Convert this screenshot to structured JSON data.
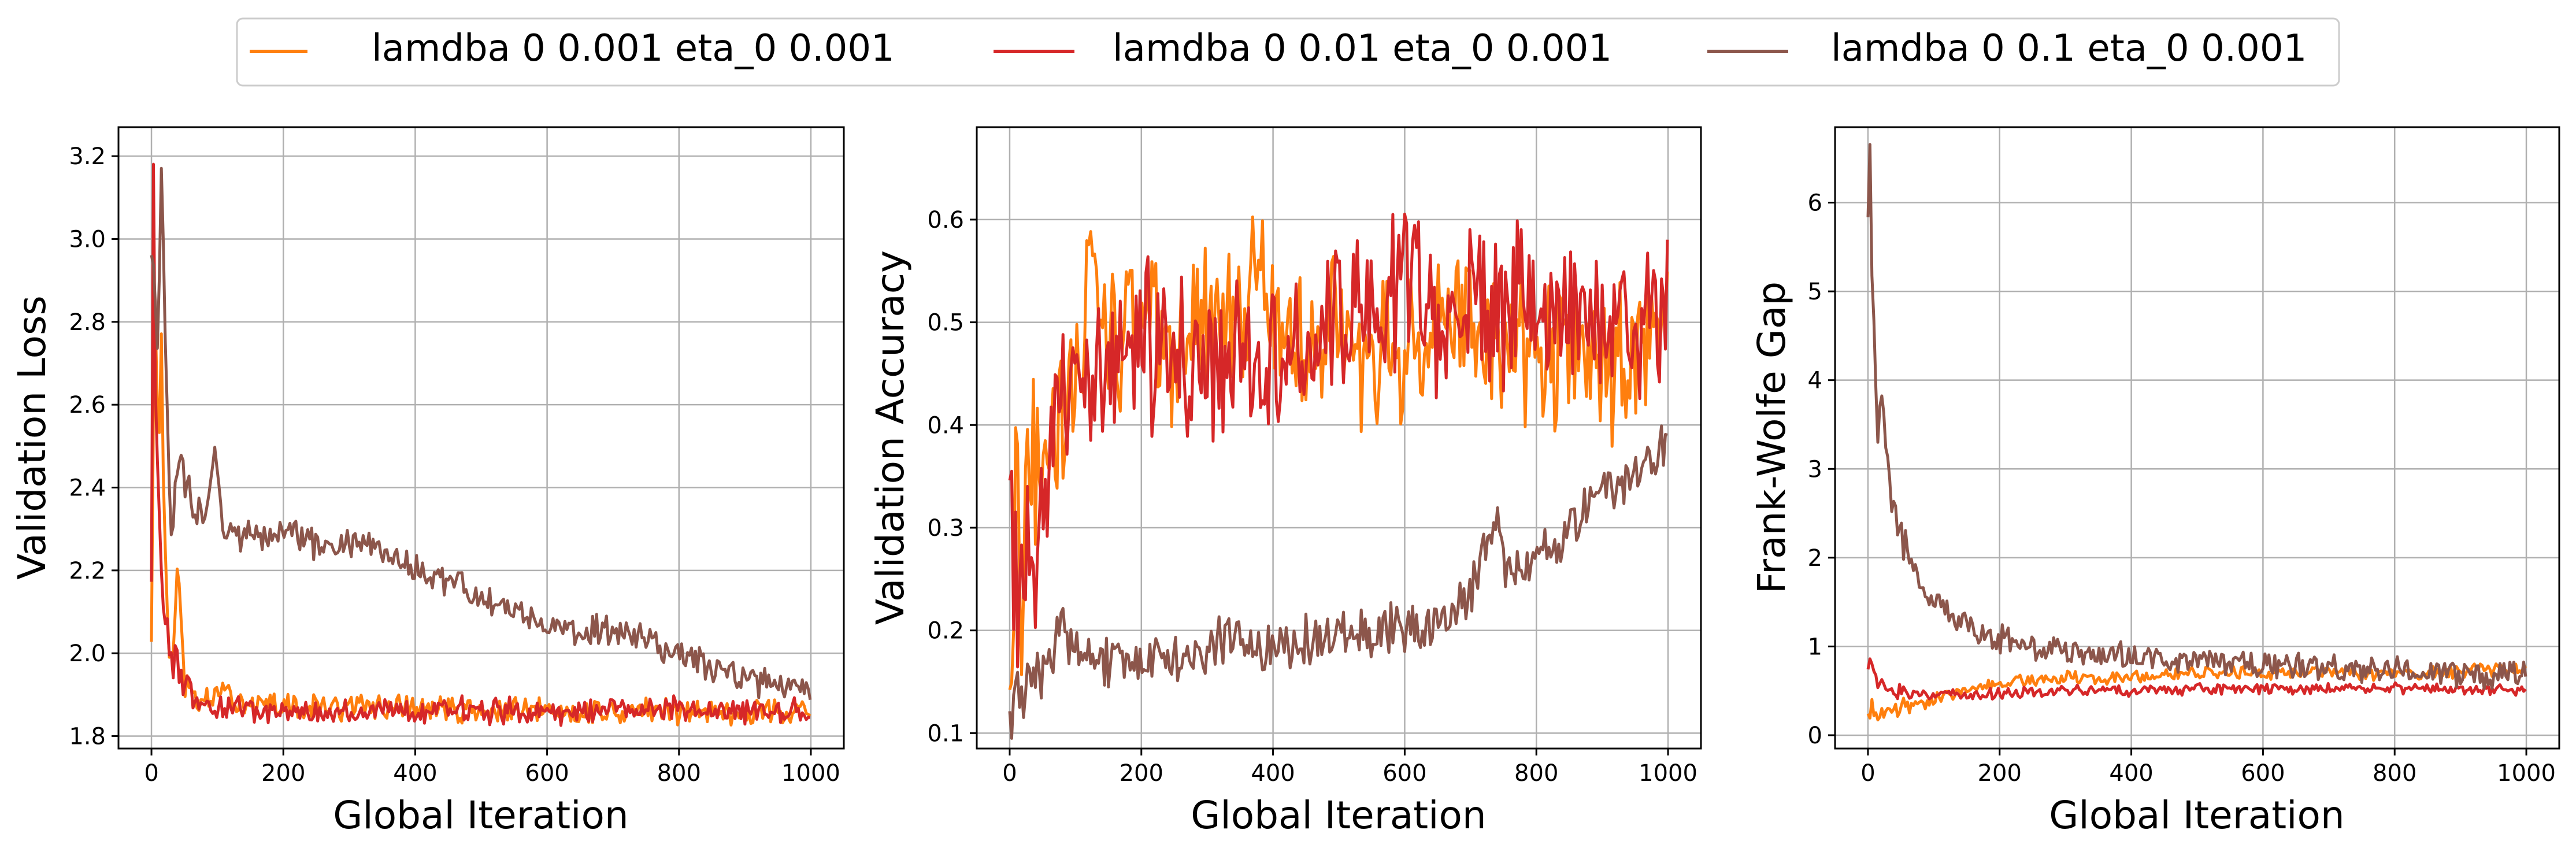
{
  "figure": {
    "legend": {
      "placement": "top-center",
      "entries": [
        {
          "label": "lamdba 0 0.001 eta_0 0.001",
          "color": "#ff7f0e"
        },
        {
          "label": "lamdba 0 0.01 eta_0 0.001",
          "color": "#d62728"
        },
        {
          "label": "lamdba 0 0.1 eta_0 0.001",
          "color": "#8c564b"
        }
      ]
    }
  },
  "chart_data": [
    {
      "type": "line",
      "xlabel": "Global Iteration",
      "ylabel": "Validation Loss",
      "xlim": [
        -50,
        1050
      ],
      "ylim": [
        1.77,
        3.27
      ],
      "xticks": [
        0,
        200,
        400,
        600,
        800,
        1000
      ],
      "yticks": [
        1.8,
        2.0,
        2.2,
        2.4,
        2.6,
        2.8,
        3.0,
        3.2
      ],
      "tick_decimals": 1,
      "grid": true,
      "series": [
        {
          "name": "lamdba 0 0.001 eta_0 0.001",
          "color": "#ff7f0e",
          "noise": 0.025,
          "x": [
            0,
            5,
            10,
            15,
            20,
            25,
            30,
            40,
            50,
            60,
            80,
            100,
            150,
            200,
            300,
            400,
            500,
            600,
            700,
            800,
            900,
            1000
          ],
          "y": [
            2.05,
            2.95,
            2.45,
            2.75,
            2.25,
            2.05,
            1.98,
            2.2,
            1.92,
            1.9,
            1.88,
            1.9,
            1.88,
            1.87,
            1.87,
            1.87,
            1.86,
            1.86,
            1.86,
            1.86,
            1.86,
            1.86
          ]
        },
        {
          "name": "lamdba 0 0.01 eta_0 0.001",
          "color": "#d62728",
          "noise": 0.025,
          "x": [
            0,
            3,
            6,
            10,
            15,
            20,
            30,
            40,
            60,
            80,
            100,
            150,
            200,
            300,
            400,
            500,
            600,
            700,
            800,
            900,
            1000
          ],
          "y": [
            2.2,
            3.2,
            2.6,
            2.4,
            2.2,
            2.1,
            2.0,
            1.95,
            1.9,
            1.88,
            1.87,
            1.86,
            1.86,
            1.86,
            1.86,
            1.86,
            1.86,
            1.86,
            1.87,
            1.86,
            1.86
          ]
        },
        {
          "name": "lamdba 0 0.1 eta_0 0.001",
          "color": "#8c564b",
          "noise": 0.03,
          "x": [
            0,
            5,
            10,
            15,
            20,
            25,
            30,
            40,
            50,
            60,
            80,
            95,
            110,
            150,
            200,
            250,
            300,
            350,
            400,
            450,
            500,
            600,
            700,
            800,
            850,
            900,
            950,
            1000
          ],
          "y": [
            3.0,
            2.9,
            2.7,
            3.15,
            2.8,
            2.55,
            2.3,
            2.5,
            2.4,
            2.35,
            2.33,
            2.5,
            2.3,
            2.28,
            2.3,
            2.26,
            2.27,
            2.25,
            2.21,
            2.17,
            2.14,
            2.07,
            2.05,
            2.0,
            1.96,
            1.94,
            1.92,
            1.91
          ]
        }
      ]
    },
    {
      "type": "line",
      "xlabel": "Global Iteration",
      "ylabel": "Validation Accuracy",
      "xlim": [
        -50,
        1050
      ],
      "ylim": [
        0.085,
        0.69
      ],
      "xticks": [
        0,
        200,
        400,
        600,
        800,
        1000
      ],
      "yticks": [
        0.1,
        0.2,
        0.3,
        0.4,
        0.5,
        0.6
      ],
      "tick_decimals": 1,
      "grid": true,
      "series": [
        {
          "name": "lamdba 0 0.001 eta_0 0.001",
          "color": "#ff7f0e",
          "noise": 0.06,
          "x": [
            0,
            10,
            20,
            40,
            60,
            80,
            100,
            125,
            150,
            200,
            250,
            300,
            350,
            380,
            400,
            450,
            500,
            550,
            600,
            650,
            700,
            750,
            800,
            850,
            900,
            950,
            1000
          ],
          "y": [
            0.15,
            0.3,
            0.25,
            0.35,
            0.4,
            0.42,
            0.45,
            0.55,
            0.48,
            0.5,
            0.47,
            0.5,
            0.48,
            0.6,
            0.5,
            0.48,
            0.5,
            0.47,
            0.48,
            0.5,
            0.5,
            0.49,
            0.46,
            0.47,
            0.46,
            0.47,
            0.5
          ]
        },
        {
          "name": "lamdba 0 0.01 eta_0 0.001",
          "color": "#d62728",
          "noise": 0.06,
          "x": [
            0,
            10,
            20,
            40,
            60,
            80,
            100,
            150,
            200,
            250,
            300,
            350,
            400,
            450,
            500,
            550,
            600,
            650,
            700,
            750,
            800,
            850,
            900,
            950,
            1000
          ],
          "y": [
            0.27,
            0.25,
            0.2,
            0.3,
            0.38,
            0.4,
            0.42,
            0.45,
            0.48,
            0.47,
            0.45,
            0.47,
            0.48,
            0.47,
            0.5,
            0.5,
            0.55,
            0.5,
            0.52,
            0.52,
            0.53,
            0.5,
            0.5,
            0.5,
            0.54
          ]
        },
        {
          "name": "lamdba 0 0.1 eta_0 0.001",
          "color": "#8c564b",
          "noise": 0.02,
          "x": [
            0,
            10,
            20,
            30,
            50,
            80,
            100,
            150,
            200,
            250,
            300,
            350,
            400,
            450,
            500,
            550,
            600,
            650,
            700,
            720,
            740,
            760,
            800,
            850,
            900,
            950,
            1000
          ],
          "y": [
            0.1,
            0.15,
            0.12,
            0.14,
            0.17,
            0.2,
            0.18,
            0.17,
            0.18,
            0.17,
            0.18,
            0.19,
            0.18,
            0.19,
            0.2,
            0.2,
            0.2,
            0.21,
            0.24,
            0.28,
            0.3,
            0.25,
            0.27,
            0.3,
            0.34,
            0.35,
            0.38
          ]
        }
      ]
    },
    {
      "type": "line",
      "xlabel": "Global Iteration",
      "ylabel": "Frank-Wolfe Gap",
      "xlim": [
        -50,
        1050
      ],
      "ylim": [
        -0.15,
        6.85
      ],
      "xticks": [
        0,
        200,
        400,
        600,
        800,
        1000
      ],
      "yticks": [
        0,
        1,
        2,
        3,
        4,
        5,
        6
      ],
      "tick_decimals": 0,
      "grid": true,
      "series": [
        {
          "name": "lamdba 0 0.001 eta_0 0.001",
          "color": "#ff7f0e",
          "noise": 0.06,
          "x": [
            0,
            20,
            50,
            100,
            150,
            200,
            300,
            400,
            500,
            600,
            700,
            800,
            900,
            1000
          ],
          "y": [
            0.3,
            0.25,
            0.3,
            0.4,
            0.5,
            0.6,
            0.65,
            0.65,
            0.7,
            0.7,
            0.7,
            0.7,
            0.72,
            0.75
          ]
        },
        {
          "name": "lamdba 0 0.01 eta_0 0.001",
          "color": "#d62728",
          "noise": 0.05,
          "x": [
            0,
            5,
            10,
            30,
            60,
            100,
            200,
            300,
            400,
            500,
            600,
            700,
            800,
            900,
            1000
          ],
          "y": [
            0.8,
            0.85,
            0.6,
            0.5,
            0.45,
            0.45,
            0.48,
            0.5,
            0.5,
            0.52,
            0.52,
            0.52,
            0.52,
            0.52,
            0.52
          ]
        },
        {
          "name": "lamdba 0 0.1 eta_0 0.001",
          "color": "#8c564b",
          "noise": 0.12,
          "x": [
            0,
            3,
            6,
            10,
            15,
            20,
            30,
            40,
            50,
            60,
            80,
            100,
            150,
            200,
            250,
            300,
            400,
            500,
            600,
            700,
            800,
            900,
            1000
          ],
          "y": [
            6.0,
            6.5,
            5.2,
            4.4,
            3.5,
            3.8,
            3.0,
            2.5,
            2.3,
            2.0,
            1.7,
            1.5,
            1.25,
            1.1,
            1.0,
            0.95,
            0.88,
            0.85,
            0.8,
            0.75,
            0.72,
            0.7,
            0.68
          ]
        }
      ]
    }
  ]
}
